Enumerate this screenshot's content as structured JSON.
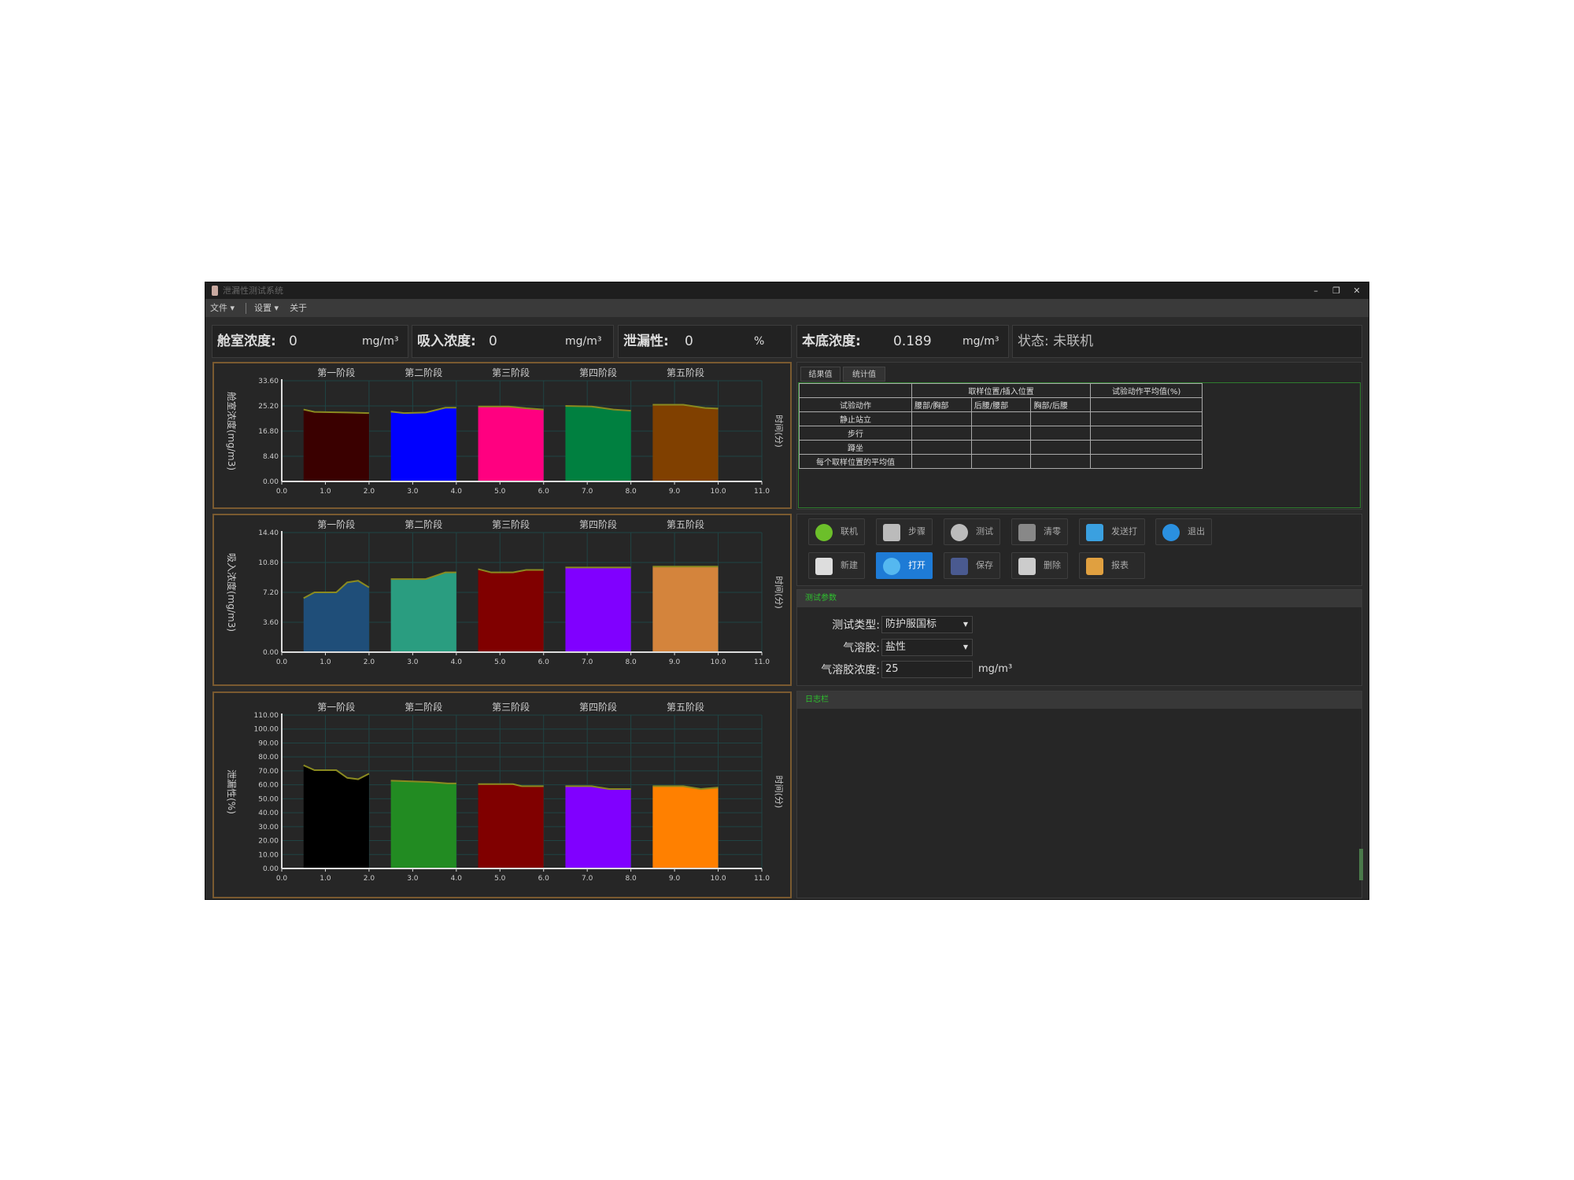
{
  "window": {
    "title": "泄漏性测试系统",
    "minimize": "–",
    "restore": "❐",
    "close": "✕"
  },
  "menu": {
    "file": "文件 ▾",
    "settings": "设置 ▾",
    "about": "关于"
  },
  "status": {
    "chamber": {
      "label": "舱室浓度:",
      "value": "0",
      "unit": "mg/m³"
    },
    "inhaled": {
      "label": "吸入浓度:",
      "value": "0",
      "unit": "mg/m³"
    },
    "leakage": {
      "label": "泄漏性:",
      "value": "0",
      "unit": "%"
    },
    "background": {
      "label": "本底浓度:",
      "value": "0.189",
      "unit": "mg/m³"
    },
    "state": {
      "label": "状态:",
      "value": "未联机"
    }
  },
  "tabs": [
    "结果值",
    "统计值"
  ],
  "table": {
    "group_header": "取样位置/插入位置",
    "avg_header": "试验动作平均值(%)",
    "row_header": "试验动作",
    "columns": [
      "腰部/胸部",
      "后腰/腰部",
      "胸部/后腰"
    ],
    "rows": [
      "静止站立",
      "步行",
      "蹲坐",
      "每个取样位置的平均值"
    ]
  },
  "toolbar": [
    {
      "label": "联机",
      "icon": "check-circle-icon",
      "color": "#6cbf2a"
    },
    {
      "label": "步骤",
      "icon": "clipboard-icon",
      "color": "#bbbbbb"
    },
    {
      "label": "测试",
      "icon": "play-icon",
      "color": "#bbbbbb"
    },
    {
      "label": "清零",
      "icon": "reset-icon",
      "color": "#888888"
    },
    {
      "label": "发送打印",
      "icon": "printer-icon",
      "color": "#3aa0e0"
    },
    {
      "label": "退出",
      "icon": "power-icon",
      "color": "#2a90e0"
    },
    {
      "label": "新建",
      "icon": "new-file-icon",
      "color": "#dddddd"
    },
    {
      "label": "打开",
      "icon": "open-icon",
      "color": "#55b8f0"
    },
    {
      "label": "保存",
      "icon": "save-icon",
      "color": "#4a5a90"
    },
    {
      "label": "删除",
      "icon": "delete-file-icon",
      "color": "#cccccc"
    },
    {
      "label": "报表",
      "icon": "report-icon",
      "color": "#e0a040"
    }
  ],
  "params": {
    "header": "测试参数",
    "test_type": {
      "label": "测试类型:",
      "value": "防护服国标"
    },
    "aerosol": {
      "label": "气溶胶:",
      "value": "盐性"
    },
    "concentration": {
      "label": "气溶胶浓度:",
      "value": "25",
      "unit": "mg/m³"
    }
  },
  "log": {
    "header": "日志栏"
  },
  "chart_data": [
    {
      "type": "area",
      "ylabel": "舱室浓度(mg/m3)",
      "xlabel": "时间(分)",
      "xlim": [
        0,
        11
      ],
      "ylim": [
        0,
        33.6
      ],
      "yticks": [
        "0.00",
        "8.40",
        "16.80",
        "25.20",
        "33.60"
      ],
      "xticks": [
        "0.0",
        "1.0",
        "2.0",
        "3.0",
        "4.0",
        "5.0",
        "6.0",
        "7.0",
        "8.0",
        "9.0",
        "10.0",
        "11.0"
      ],
      "grid": true,
      "stages": [
        "第一阶段",
        "第二阶段",
        "第三阶段",
        "第四阶段",
        "第五阶段"
      ],
      "series": [
        {
          "color": "#3a0000",
          "points": [
            [
              0.5,
              24
            ],
            [
              0.75,
              23.2
            ],
            [
              1.5,
              23
            ],
            [
              2,
              22.8
            ]
          ]
        },
        {
          "color": "#0000ff",
          "points": [
            [
              2.5,
              23.3
            ],
            [
              2.8,
              22.8
            ],
            [
              3.3,
              23
            ],
            [
              3.75,
              24.6
            ],
            [
              4,
              24.6
            ]
          ]
        },
        {
          "color": "#ff0080",
          "points": [
            [
              4.5,
              25
            ],
            [
              5.2,
              25
            ],
            [
              5.6,
              24.4
            ],
            [
              6,
              24
            ]
          ]
        },
        {
          "color": "#008040",
          "points": [
            [
              6.5,
              25.2
            ],
            [
              7.1,
              25
            ],
            [
              7.6,
              24
            ],
            [
              8,
              23.6
            ]
          ]
        },
        {
          "color": "#804000",
          "points": [
            [
              8.5,
              25.6
            ],
            [
              9.2,
              25.6
            ],
            [
              9.7,
              24.5
            ],
            [
              10,
              24.3
            ]
          ]
        }
      ]
    },
    {
      "type": "area",
      "ylabel": "吸入浓度(mg/m3)",
      "xlabel": "时间(分)",
      "xlim": [
        0,
        11
      ],
      "ylim": [
        0,
        14.4
      ],
      "yticks": [
        "0.00",
        "3.60",
        "7.20",
        "10.80",
        "14.40"
      ],
      "xticks": [
        "0.0",
        "1.0",
        "2.0",
        "3.0",
        "4.0",
        "5.0",
        "6.0",
        "7.0",
        "8.0",
        "9.0",
        "10.0",
        "11.0"
      ],
      "grid": true,
      "stages": [
        "第一阶段",
        "第二阶段",
        "第三阶段",
        "第四阶段",
        "第五阶段"
      ],
      "series": [
        {
          "color": "#1f4e79",
          "points": [
            [
              0.5,
              6.5
            ],
            [
              0.75,
              7.2
            ],
            [
              1.25,
              7.2
            ],
            [
              1.5,
              8.4
            ],
            [
              1.75,
              8.6
            ],
            [
              2,
              7.8
            ]
          ]
        },
        {
          "color": "#2a9d80",
          "points": [
            [
              2.5,
              8.8
            ],
            [
              3.3,
              8.8
            ],
            [
              3.75,
              9.6
            ],
            [
              4,
              9.6
            ]
          ]
        },
        {
          "color": "#800000",
          "points": [
            [
              4.5,
              10
            ],
            [
              4.8,
              9.6
            ],
            [
              5.3,
              9.6
            ],
            [
              5.6,
              9.9
            ],
            [
              6,
              9.9
            ]
          ]
        },
        {
          "color": "#8000ff",
          "points": [
            [
              6.5,
              10.2
            ],
            [
              8,
              10.2
            ]
          ]
        },
        {
          "color": "#d4843c",
          "points": [
            [
              8.5,
              10.3
            ],
            [
              10,
              10.3
            ]
          ]
        }
      ]
    },
    {
      "type": "area",
      "ylabel": "泄漏性(%)",
      "xlabel": "时间(分)",
      "xlim": [
        0,
        11
      ],
      "ylim": [
        0,
        110
      ],
      "yticks": [
        "0.00",
        "10.00",
        "20.00",
        "30.00",
        "40.00",
        "50.00",
        "60.00",
        "70.00",
        "80.00",
        "90.00",
        "100.00",
        "110.00"
      ],
      "xticks": [
        "0.0",
        "1.0",
        "2.0",
        "3.0",
        "4.0",
        "5.0",
        "6.0",
        "7.0",
        "8.0",
        "9.0",
        "10.0",
        "11.0"
      ],
      "grid": true,
      "stages": [
        "第一阶段",
        "第二阶段",
        "第三阶段",
        "第四阶段",
        "第五阶段"
      ],
      "series": [
        {
          "color": "#000000",
          "points": [
            [
              0.5,
              74
            ],
            [
              0.75,
              70.5
            ],
            [
              1.25,
              70.5
            ],
            [
              1.5,
              65
            ],
            [
              1.75,
              64
            ],
            [
              2,
              68
            ]
          ]
        },
        {
          "color": "#228b22",
          "points": [
            [
              2.5,
              63
            ],
            [
              3.4,
              62
            ],
            [
              3.8,
              61
            ],
            [
              4,
              61
            ]
          ]
        },
        {
          "color": "#800000",
          "points": [
            [
              4.5,
              60.5
            ],
            [
              5.3,
              60.5
            ],
            [
              5.5,
              59
            ],
            [
              6,
              59
            ]
          ]
        },
        {
          "color": "#8000ff",
          "points": [
            [
              6.5,
              59
            ],
            [
              7.1,
              59
            ],
            [
              7.5,
              57
            ],
            [
              8,
              57
            ]
          ]
        },
        {
          "color": "#ff8000",
          "points": [
            [
              8.5,
              59
            ],
            [
              9.2,
              59
            ],
            [
              9.6,
              57
            ],
            [
              10,
              58
            ]
          ]
        }
      ]
    }
  ]
}
